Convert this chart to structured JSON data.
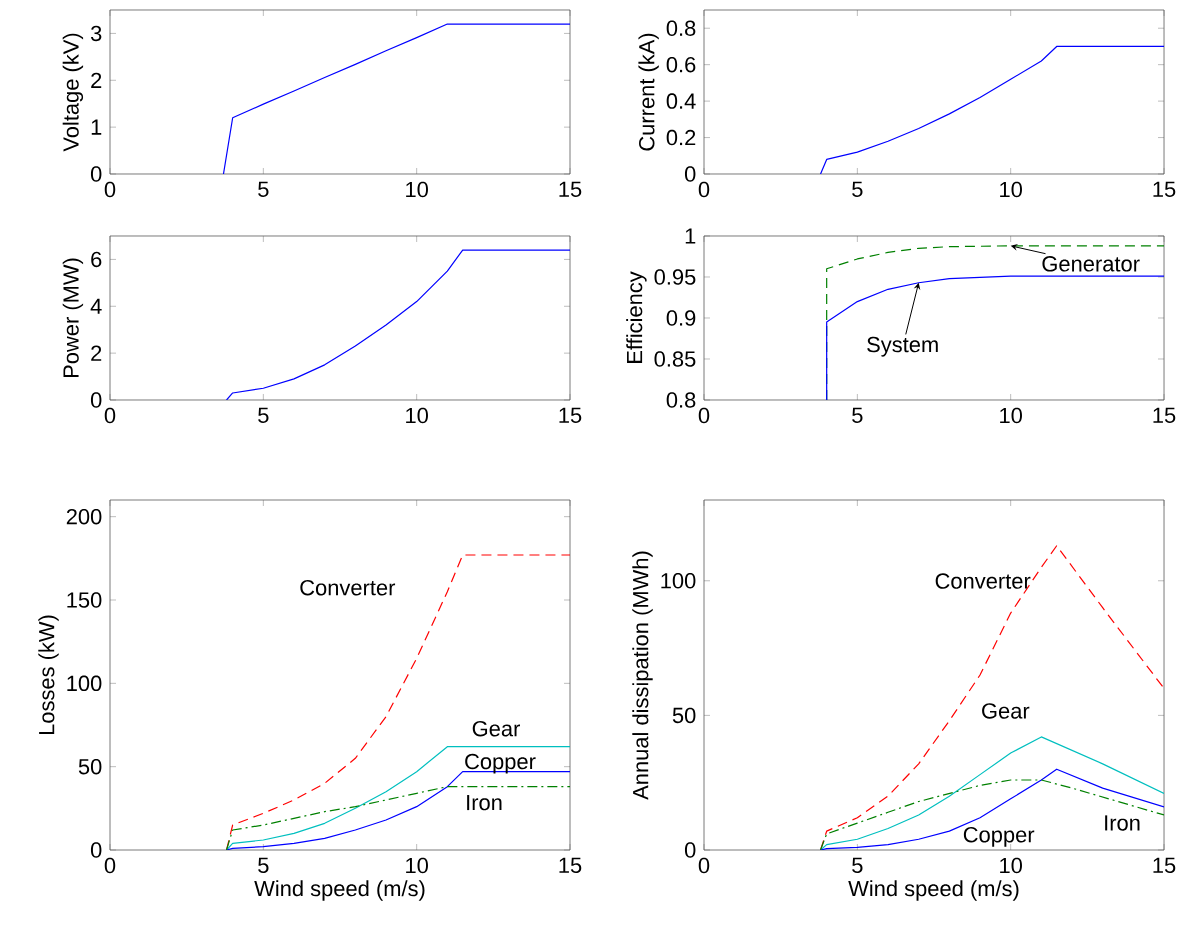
{
  "chart_data": [
    {
      "type": "line",
      "ylabel": "Voltage (kV)",
      "xlim": [
        0,
        15
      ],
      "ylim": [
        0,
        3.5
      ],
      "xticks": [
        0,
        5,
        10,
        15
      ],
      "yticks": [
        0,
        1,
        2,
        3
      ],
      "series": [
        {
          "color": "#0000ff",
          "line_style": "solid",
          "x": [
            3.7,
            4,
            5,
            6,
            7,
            8,
            9,
            10,
            11,
            15
          ],
          "values": [
            0,
            1.2,
            1.49,
            1.77,
            2.06,
            2.34,
            2.63,
            2.91,
            3.2,
            3.2
          ]
        }
      ]
    },
    {
      "type": "line",
      "ylabel": "Current (kA)",
      "xlim": [
        0,
        15
      ],
      "ylim": [
        0,
        0.9
      ],
      "xticks": [
        0,
        5,
        10,
        15
      ],
      "yticks": [
        0,
        0.2,
        0.4,
        0.6,
        0.8
      ],
      "series": [
        {
          "color": "#0000ff",
          "line_style": "solid",
          "x": [
            3.8,
            4,
            5,
            6,
            7,
            8,
            9,
            10,
            11,
            11.5,
            15
          ],
          "values": [
            0,
            0.08,
            0.12,
            0.18,
            0.25,
            0.33,
            0.42,
            0.52,
            0.62,
            0.7,
            0.7
          ]
        }
      ]
    },
    {
      "type": "line",
      "ylabel": "Power (MW)",
      "xlim": [
        0,
        15
      ],
      "ylim": [
        0,
        7
      ],
      "xticks": [
        0,
        5,
        10,
        15
      ],
      "yticks": [
        0,
        2,
        4,
        6
      ],
      "series": [
        {
          "color": "#0000ff",
          "line_style": "solid",
          "x": [
            3.8,
            4,
            5,
            6,
            7,
            8,
            9,
            10,
            11,
            11.5,
            15
          ],
          "values": [
            0,
            0.3,
            0.5,
            0.9,
            1.5,
            2.3,
            3.2,
            4.2,
            5.5,
            6.4,
            6.4
          ]
        }
      ]
    },
    {
      "type": "line",
      "ylabel": "Efficiency",
      "xlim": [
        0,
        15
      ],
      "ylim": [
        0.8,
        1
      ],
      "xticks": [
        0,
        5,
        10,
        15
      ],
      "yticks": [
        0.8,
        0.85,
        0.9,
        0.95,
        1
      ],
      "series": [
        {
          "name": "Generator",
          "color": "#008000",
          "line_style": "dashed",
          "x": [
            4,
            4,
            5,
            6,
            7,
            8,
            10,
            15
          ],
          "values": [
            0.8,
            0.96,
            0.972,
            0.98,
            0.985,
            0.987,
            0.988,
            0.988
          ]
        },
        {
          "name": "System",
          "color": "#0000ff",
          "line_style": "solid",
          "x": [
            4,
            4,
            5,
            6,
            7,
            8,
            10,
            15
          ],
          "values": [
            0.8,
            0.895,
            0.92,
            0.935,
            0.943,
            0.948,
            0.951,
            0.951
          ]
        }
      ]
    },
    {
      "type": "line",
      "xlabel": "Wind speed (m/s)",
      "ylabel": "Losses (kW)",
      "xlim": [
        0,
        15
      ],
      "ylim": [
        0,
        210
      ],
      "xticks": [
        0,
        5,
        10,
        15
      ],
      "yticks": [
        0,
        50,
        100,
        150,
        200
      ],
      "series": [
        {
          "name": "Converter",
          "color": "#ff0000",
          "line_style": "dashed",
          "x": [
            3.8,
            4,
            5,
            6,
            7,
            8,
            9,
            10,
            11,
            11.5,
            15
          ],
          "values": [
            0,
            15,
            22,
            30,
            40,
            55,
            80,
            115,
            155,
            177,
            177
          ]
        },
        {
          "name": "Gear",
          "color": "#00bfbf",
          "line_style": "solid",
          "x": [
            3.8,
            4,
            5,
            6,
            7,
            8,
            9,
            10,
            11,
            15
          ],
          "values": [
            0,
            4,
            6,
            10,
            16,
            25,
            35,
            47,
            62,
            62
          ]
        },
        {
          "name": "Copper",
          "color": "#0000ff",
          "line_style": "solid",
          "x": [
            3.8,
            4,
            5,
            6,
            7,
            8,
            9,
            10,
            11,
            11.5,
            15
          ],
          "values": [
            0,
            1,
            2,
            4,
            7,
            12,
            18,
            26,
            38,
            47,
            47
          ]
        },
        {
          "name": "Iron",
          "color": "#008000",
          "line_style": "dashdot",
          "x": [
            3.8,
            4,
            5,
            6,
            7,
            8,
            9,
            10,
            11,
            15
          ],
          "values": [
            0,
            12,
            15,
            19,
            23,
            26,
            30,
            34,
            38,
            38
          ]
        }
      ]
    },
    {
      "type": "line",
      "xlabel": "Wind speed (m/s)",
      "ylabel": "Annual dissipation (MWh)",
      "xlim": [
        0,
        15
      ],
      "ylim": [
        0,
        130
      ],
      "xticks": [
        0,
        5,
        10,
        15
      ],
      "yticks": [
        0,
        50,
        100
      ],
      "series": [
        {
          "name": "Converter",
          "color": "#ff0000",
          "line_style": "dashed",
          "x": [
            3.8,
            4,
            5,
            6,
            7,
            8,
            9,
            10,
            11,
            11.5,
            13,
            15
          ],
          "values": [
            0,
            7,
            12,
            20,
            32,
            48,
            65,
            88,
            105,
            113,
            90,
            60
          ]
        },
        {
          "name": "Gear",
          "color": "#00bfbf",
          "line_style": "solid",
          "x": [
            3.8,
            4,
            5,
            6,
            7,
            8,
            9,
            10,
            11,
            13,
            15
          ],
          "values": [
            0,
            2,
            4,
            8,
            13,
            20,
            28,
            36,
            42,
            32,
            21
          ]
        },
        {
          "name": "Copper",
          "color": "#0000ff",
          "line_style": "solid",
          "x": [
            3.8,
            4,
            5,
            6,
            7,
            8,
            9,
            10,
            11,
            11.5,
            13,
            15
          ],
          "values": [
            0,
            0.5,
            1,
            2,
            4,
            7,
            12,
            19,
            26,
            30,
            23,
            16
          ]
        },
        {
          "name": "Iron",
          "color": "#008000",
          "line_style": "dashdot",
          "x": [
            3.8,
            4,
            5,
            6,
            7,
            8,
            9,
            10,
            11,
            12,
            15
          ],
          "values": [
            0,
            6,
            10,
            14,
            18,
            21,
            24,
            26,
            26,
            23,
            13
          ]
        }
      ]
    }
  ]
}
